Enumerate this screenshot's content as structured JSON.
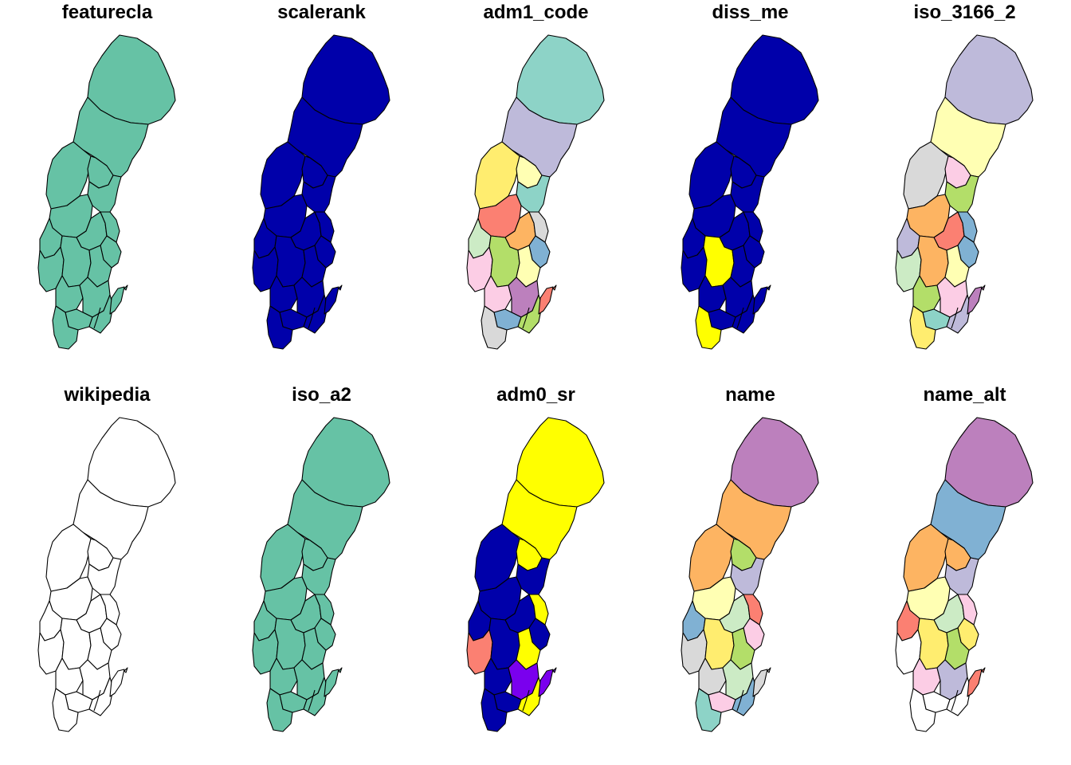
{
  "panels": [
    {
      "title": "featurecla",
      "colors": [
        "#66c2a5"
      ]
    },
    {
      "title": "scalerank",
      "colors": [
        "#0000aa"
      ]
    },
    {
      "title": "adm1_code",
      "colors": [
        "#8dd3c7",
        "#bebada",
        "#ffed6f",
        "#ffffb3",
        "#8dd3c7",
        "#fb8072",
        "#ccebc5",
        "#fdb462",
        "#d9d9d9",
        "#80b1d3",
        "#fccde5",
        "#b3de69",
        "#ffffb3",
        "#fccde5",
        "#bc80bd",
        "#80b1d3",
        "#b3de69",
        "#d9d9d9",
        "#fb8072"
      ]
    },
    {
      "title": "diss_me",
      "colors": [
        "#0000aa",
        "#0000aa",
        "#0000aa",
        "#0000aa",
        "#0000aa",
        "#0000aa",
        "#0000aa",
        "#0000aa",
        "#0000aa",
        "#0000aa",
        "#0000aa",
        "#ffff00",
        "#0000aa",
        "#0000aa",
        "#0000aa",
        "#0000aa",
        "#0000aa",
        "#ffff00",
        "#0000aa"
      ]
    },
    {
      "title": "iso_3166_2",
      "colors": [
        "#bebada",
        "#ffffb3",
        "#d9d9d9",
        "#fccde5",
        "#b3de69",
        "#fdb462",
        "#bebada",
        "#fb8072",
        "#80b1d3",
        "#80b1d3",
        "#ccebc5",
        "#fdb462",
        "#ffffb3",
        "#b3de69",
        "#fccde5",
        "#8dd3c7",
        "#bebada",
        "#ffed6f",
        "#bc80bd"
      ]
    },
    {
      "title": "wikipedia",
      "colors": [
        "#ffffff"
      ]
    },
    {
      "title": "iso_a2",
      "colors": [
        "#66c2a5"
      ]
    },
    {
      "title": "adm0_sr",
      "colors": [
        "#ffff00",
        "#ffff00",
        "#0000aa",
        "#ffff00",
        "#0000aa",
        "#0000aa",
        "#0000aa",
        "#0000aa",
        "#ffff00",
        "#0000aa",
        "#fb8072",
        "#0000aa",
        "#ffff00",
        "#0000aa",
        "#7a00ee",
        "#0000aa",
        "#ffff00",
        "#0000aa",
        "#7a00ee"
      ]
    },
    {
      "title": "name",
      "colors": [
        "#bc80bd",
        "#fdb462",
        "#fdb462",
        "#b3de69",
        "#bebada",
        "#ffffb3",
        "#80b1d3",
        "#ccebc5",
        "#fb8072",
        "#fccde5",
        "#d9d9d9",
        "#ffed6f",
        "#b3de69",
        "#d9d9d9",
        "#ccebc5",
        "#fccde5",
        "#80b1d3",
        "#8dd3c7",
        "#d9d9d9"
      ]
    },
    {
      "title": "name_alt",
      "colors": [
        "#bc80bd",
        "#80b1d3",
        "#fdb462",
        "#fdb462",
        "#bebada",
        "#ffffb3",
        "#fb8072",
        "#ccebc5",
        "#fccde5",
        "#ffed6f",
        "#ffffff",
        "#ffed6f",
        "#b3de69",
        "#fccde5",
        "#bebada",
        "#ffffff",
        "#ffffff",
        "#ffffff",
        "#fb8072"
      ]
    }
  ]
}
